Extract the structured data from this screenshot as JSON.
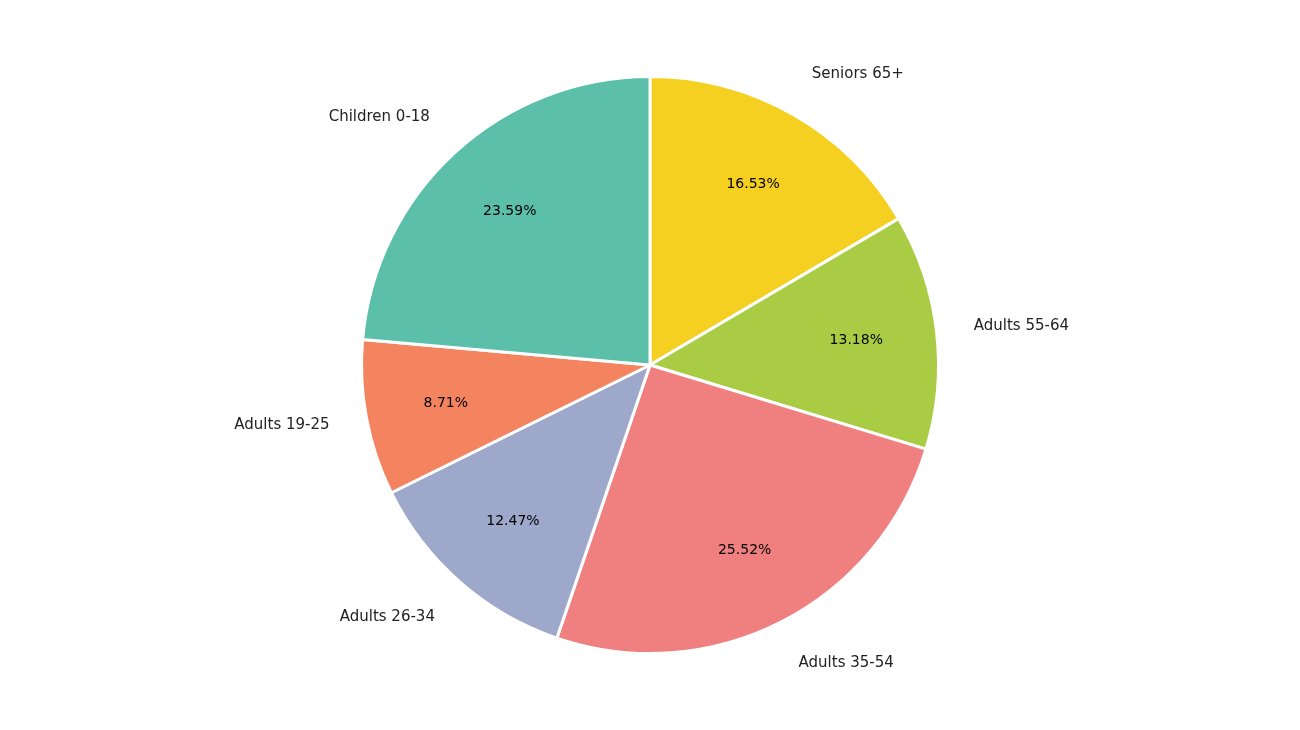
{
  "chart_data": {
    "type": "pie",
    "categories": [
      "Seniors 65+",
      "Adults 55-64",
      "Adults 35-54",
      "Adults 26-34",
      "Adults 19-25",
      "Children 0-18"
    ],
    "values": [
      16.53,
      13.18,
      25.52,
      12.47,
      8.71,
      23.59
    ],
    "value_labels": [
      "16.53%",
      "13.18%",
      "25.52%",
      "12.47%",
      "8.71%",
      "23.59%"
    ],
    "colors": [
      "#F5D020",
      "#AACC44",
      "#F08080",
      "#9EA8CB",
      "#F4845F",
      "#5BBFAA"
    ],
    "data_labels": true
  }
}
